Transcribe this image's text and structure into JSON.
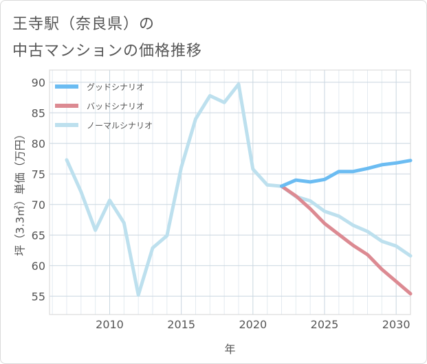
{
  "title_line1": "王寺駅（奈良県）の",
  "title_line2": "中古マンションの価格推移",
  "chart_data": {
    "type": "line",
    "xlabel": "年",
    "ylabel": "坪（3.3㎡）単価（万円）",
    "xlim": [
      2005.8,
      2031
    ],
    "ylim": [
      52,
      92
    ],
    "xticks": [
      2010,
      2015,
      2020,
      2025,
      2030
    ],
    "yticks": [
      55,
      60,
      65,
      70,
      75,
      80,
      85,
      90
    ],
    "grid": true,
    "legend_position": "top-left",
    "series": [
      {
        "name": "グッドシナリオ",
        "color": "#6bbcf2",
        "x": [
          2022,
          2023,
          2024,
          2025,
          2026,
          2027,
          2028,
          2029,
          2030,
          2031
        ],
        "y": [
          73.0,
          74.0,
          73.7,
          74.1,
          75.4,
          75.4,
          75.9,
          76.5,
          76.8,
          77.2
        ]
      },
      {
        "name": "バッドシナリオ",
        "color": "#dc8a92",
        "x": [
          2022,
          2023,
          2024,
          2025,
          2026,
          2027,
          2028,
          2029,
          2030,
          2031
        ],
        "y": [
          73.0,
          71.4,
          69.3,
          66.9,
          65.1,
          63.3,
          61.8,
          59.4,
          57.4,
          55.4
        ]
      },
      {
        "name": "ノーマルシナリオ",
        "color": "#bde0ee",
        "x": [
          2007,
          2008,
          2009,
          2010,
          2011,
          2012,
          2013,
          2014,
          2015,
          2016,
          2017,
          2018,
          2019,
          2020,
          2021,
          2022,
          2023,
          2024,
          2025,
          2026,
          2027,
          2028,
          2029,
          2030,
          2031
        ],
        "y": [
          77.3,
          72.1,
          65.8,
          70.7,
          67.0,
          55.2,
          62.9,
          64.9,
          76.1,
          84.0,
          87.8,
          86.7,
          89.7,
          75.8,
          73.2,
          73.0,
          71.3,
          70.6,
          68.9,
          68.1,
          66.6,
          65.6,
          64.0,
          63.2,
          61.6
        ]
      }
    ]
  }
}
